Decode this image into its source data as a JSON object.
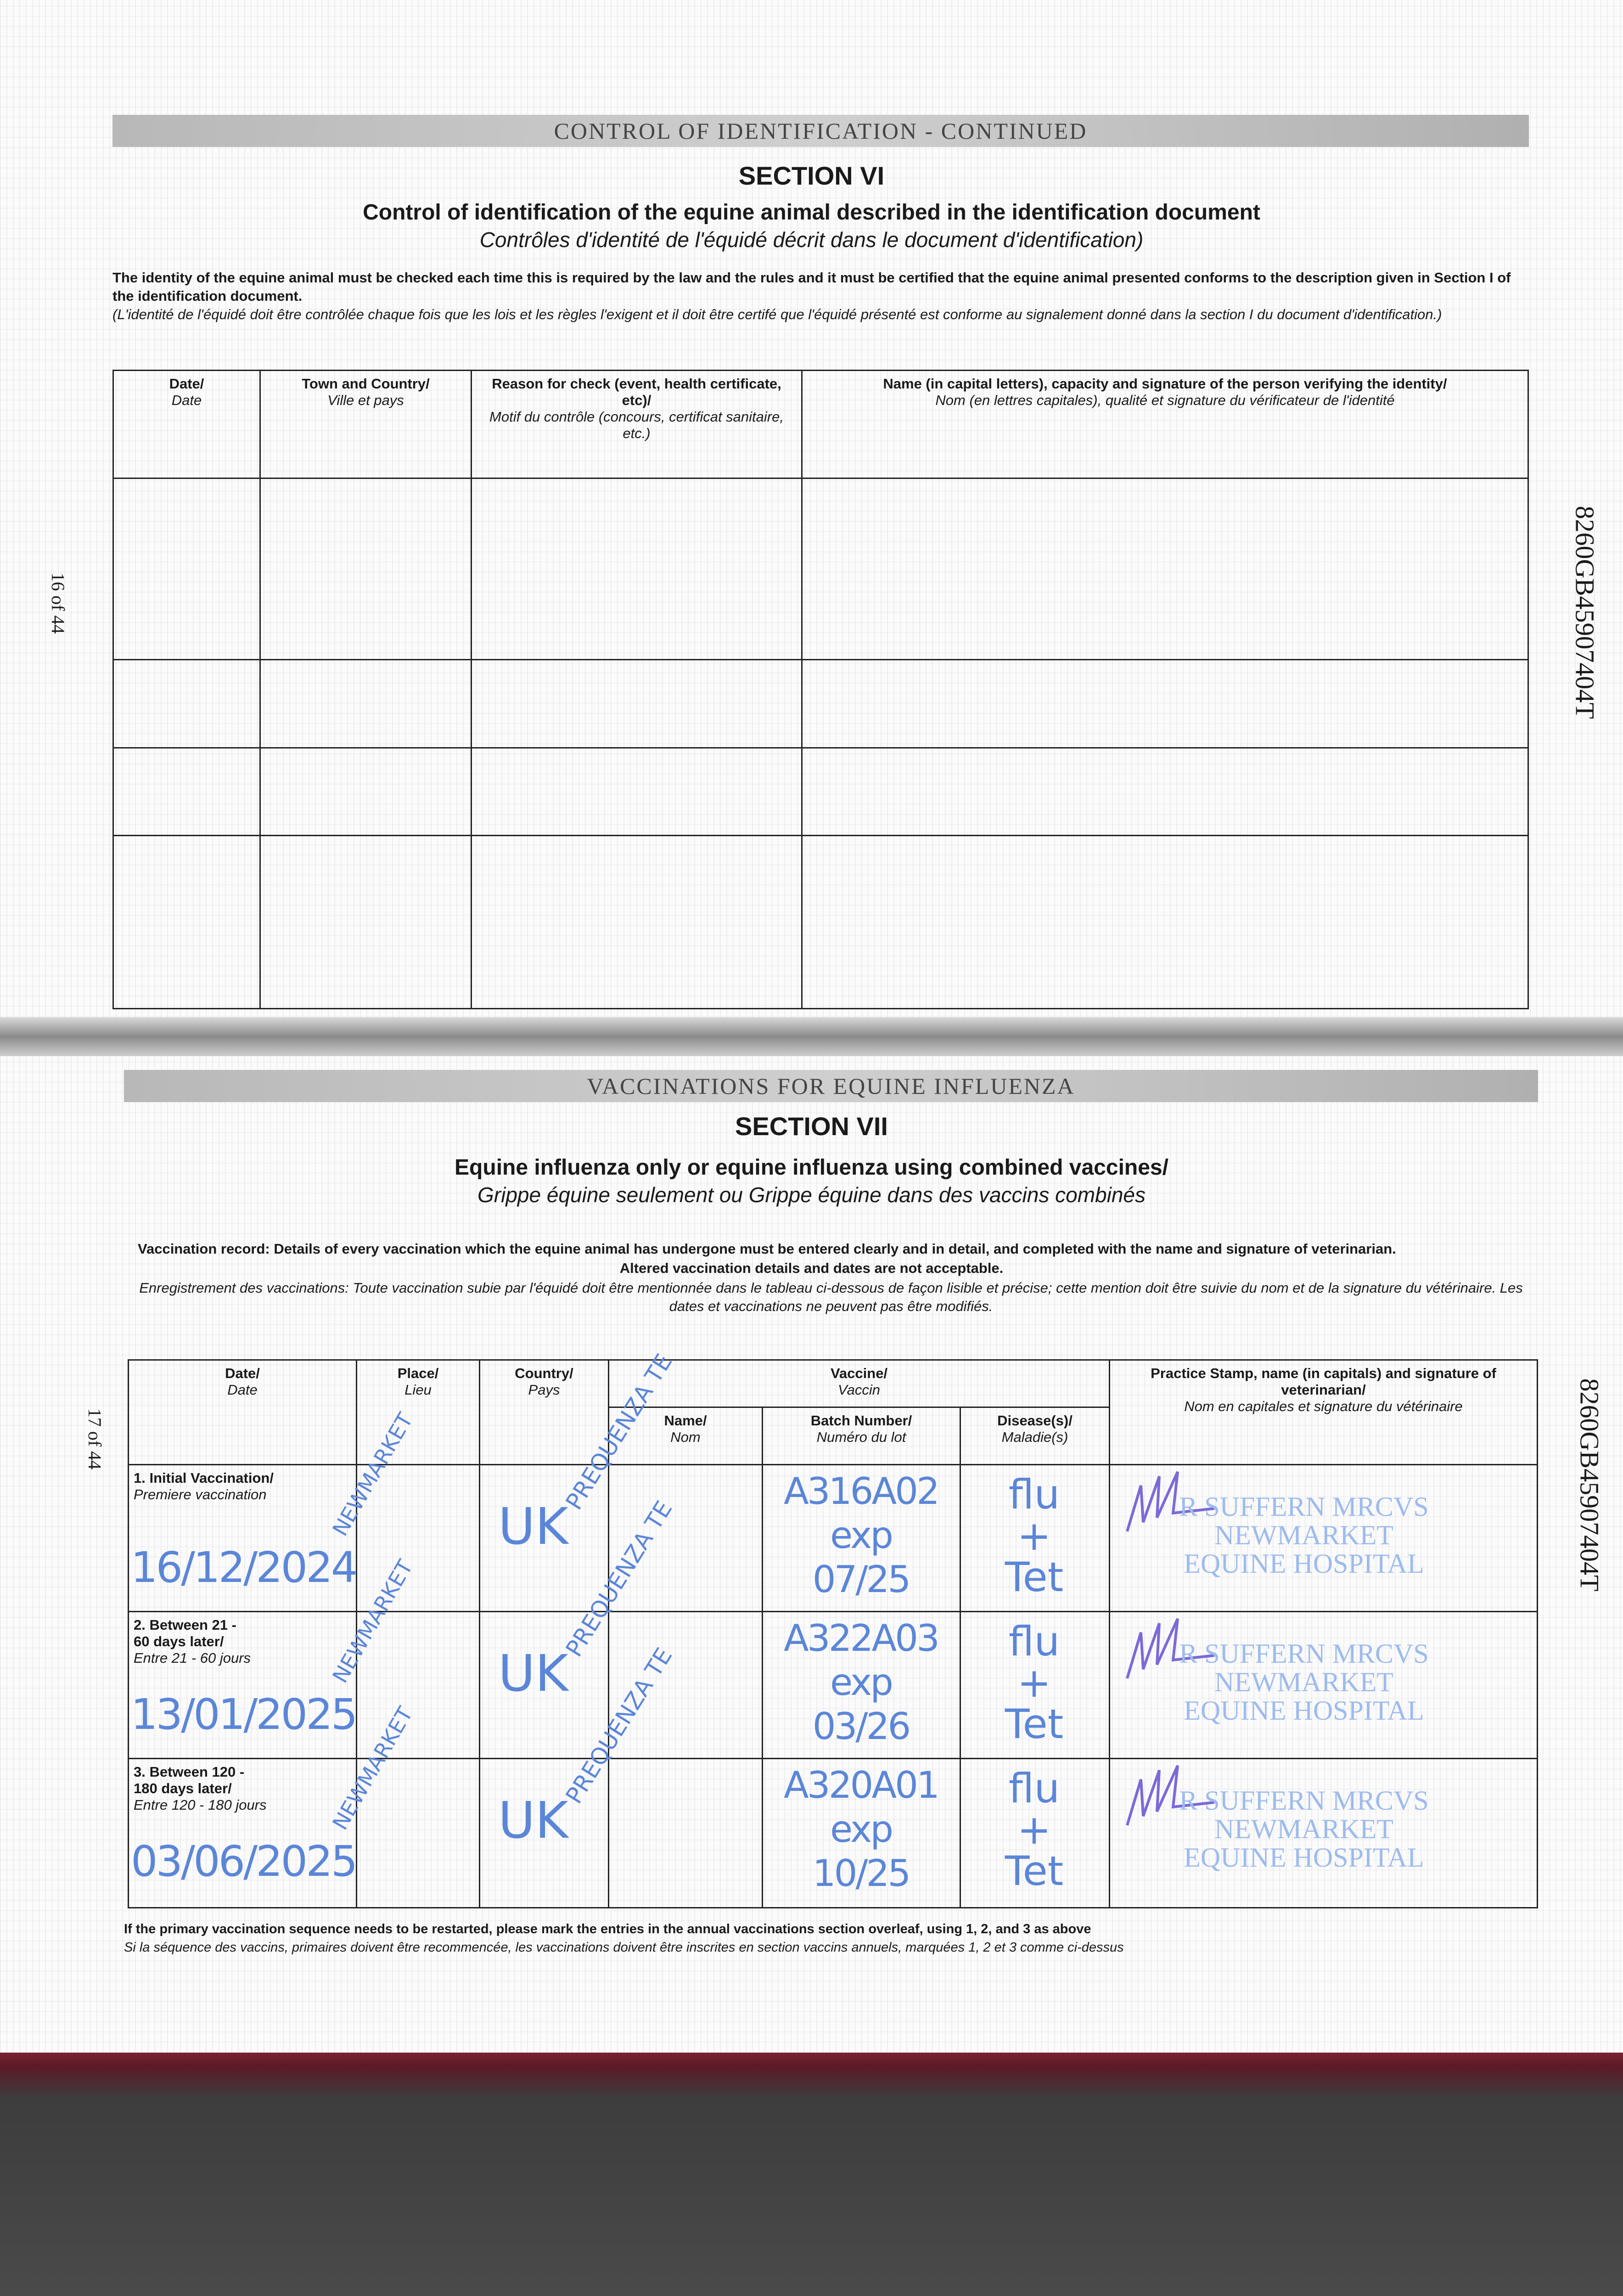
{
  "page16": {
    "band": "CONTROL OF IDENTIFICATION - CONTINUED",
    "section": "SECTION VI",
    "title": "Control of identification of the equine animal described in the identification document",
    "title_fr": "Contrôles d'identité de l'équidé décrit dans le document d'identification)",
    "intro": "The identity of the equine animal must be checked each time this is required by the law and the rules and it must be certified that the equine animal presented conforms to the description given in Section I of the identification document.",
    "intro_fr": "(L'identité de l'équidé doit être contrôlée chaque fois que les lois et les règles l'exigent et il doit être certifé que l'équidé présenté est conforme au signalement donné dans la section I du document d'identification.)",
    "columns": [
      {
        "en": "Date/",
        "fr": "Date"
      },
      {
        "en": "Town and Country/",
        "fr": "Ville et pays"
      },
      {
        "en": "Reason for check (event, health certificate, etc)/",
        "fr": "Motif du contrôle (concours, certificat sanitaire, etc.)"
      },
      {
        "en": "Name (in capital letters), capacity and signature of the person verifying the identity/",
        "fr": "Nom (en lettres capitales), qualité et signature du vérificateur de l'identité"
      }
    ],
    "page_number": "16 of 44",
    "passport_id": "8260GB45907404T"
  },
  "page17": {
    "band": "VACCINATIONS FOR EQUINE INFLUENZA",
    "section": "SECTION VII",
    "title": "Equine influenza only or equine influenza using combined vaccines/",
    "title_fr": "Grippe équine seulement ou Grippe équine dans des vaccins combinés",
    "intro": "Vaccination record: Details of every vaccination which the equine animal has undergone must be entered clearly and in detail, and completed with the name and signature of veterinarian.",
    "intro2": "Altered vaccination details and dates are not acceptable.",
    "intro_fr": "Enregistrement des vaccinations: Toute vaccination subie par l'équidé doit être mentionnée dans le tableau ci-dessous de façon lisible et précise; cette mention doit être suivie du nom et de la signature du vétérinaire. Les dates et vaccinations ne peuvent pas être modifiés.",
    "headers": {
      "date": {
        "en": "Date/",
        "fr": "Date"
      },
      "place": {
        "en": "Place/",
        "fr": "Lieu"
      },
      "country": {
        "en": "Country/",
        "fr": "Pays"
      },
      "vaccine": {
        "en": "Vaccine/",
        "fr": "Vaccin"
      },
      "name": {
        "en": "Name/",
        "fr": "Nom"
      },
      "batch": {
        "en": "Batch Number/",
        "fr": "Numéro du lot"
      },
      "disease": {
        "en": "Disease(s)/",
        "fr": "Maladie(s)"
      },
      "vet": {
        "en": "Practice Stamp, name (in capitals) and signature of veterinarian/",
        "fr": "Nom en capitales et signature du vétérinaire"
      }
    },
    "rows": [
      {
        "label": "1. Initial Vaccination/",
        "label_fr": "Premiere vaccination",
        "date": "16/12/2024",
        "place": "NEWMARKET",
        "country": "UK",
        "name": "PREQUENZA TE",
        "batch": "A316A02",
        "exp": "exp",
        "exp_date": "07/25",
        "disease1": "flu",
        "plus": "+",
        "disease2": "Tet",
        "stamp": [
          "R SUFFERN MRCVS",
          "NEWMARKET",
          "EQUINE HOSPITAL"
        ]
      },
      {
        "label": "2. Between 21 - 60 days later/",
        "label_fr": "Entre 21 - 60 jours",
        "date": "13/01/2025",
        "place": "NEWMARKET",
        "country": "UK",
        "name": "PREQUENZA TE",
        "batch": "A322A03",
        "exp": "exp",
        "exp_date": "03/26",
        "disease1": "flu",
        "plus": "+",
        "disease2": "Tet",
        "stamp": [
          "R SUFFERN MRCVS",
          "NEWMARKET",
          "EQUINE HOSPITAL"
        ]
      },
      {
        "label": "3. Between 120 - 180 days later/",
        "label_fr": "Entre 120 - 180 jours",
        "date": "03/06/2025",
        "place": "NEWMARKET",
        "country": "UK",
        "name": "PREQUENZA TE",
        "batch": "A320A01",
        "exp": "exp",
        "exp_date": "10/25",
        "disease1": "flu",
        "plus": "+",
        "disease2": "Tet",
        "stamp": [
          "R SUFFERN MRCVS",
          "NEWMARKET",
          "EQUINE HOSPITAL"
        ]
      }
    ],
    "footer": "If the primary vaccination sequence needs to be restarted, please mark the entries in the annual vaccinations section overleaf, using 1, 2, and 3 as above",
    "footer_fr": "Si la séquence des vaccins, primaires doivent être recommencée, les vaccinations doivent être inscrites en section vaccins annuels, marquées 1, 2 et 3 comme ci-dessus",
    "page_number": "17 of 44",
    "passport_id": "8260GB45907404T"
  },
  "colors": {
    "ink": "#5b86d8",
    "stamp": "#9dbbee",
    "signature": "#7a6ad8",
    "cover": "#5b1a26"
  }
}
